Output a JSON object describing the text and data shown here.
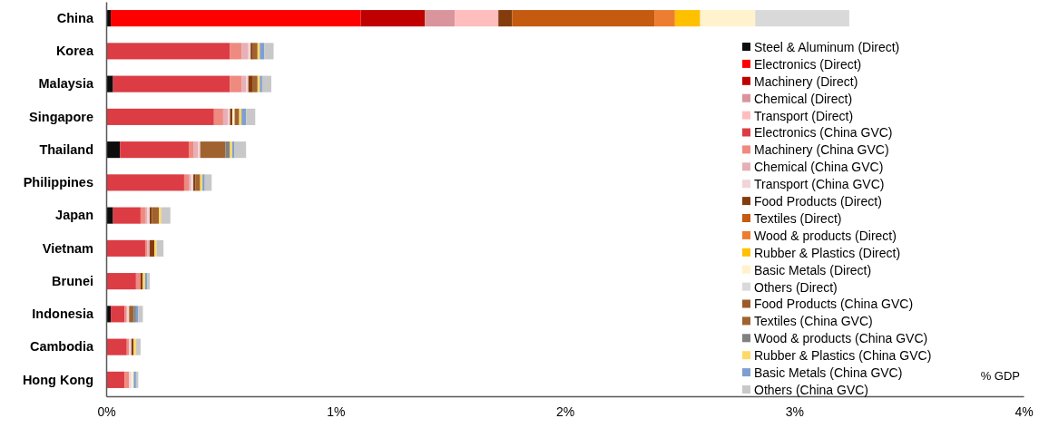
{
  "chart_data": {
    "type": "bar",
    "orientation": "horizontal",
    "stacked": true,
    "legend": "right",
    "grid": false,
    "categories": [
      "China",
      "Korea",
      "Malaysia",
      "Singapore",
      "Thailand",
      "Philippines",
      "Japan",
      "Vietnam",
      "Brunei",
      "Indonesia",
      "Cambodia",
      "Hong Kong"
    ],
    "xlim": [
      0,
      4
    ],
    "xticks": [
      {
        "value": 0,
        "label": "0%"
      },
      {
        "value": 1,
        "label": "1%"
      },
      {
        "value": 2,
        "label": "2%"
      },
      {
        "value": 3,
        "label": "3%"
      },
      {
        "value": 4,
        "label": "4%"
      }
    ],
    "annotations": [
      "% GDP"
    ],
    "series": [
      {
        "name": "Steel & Aluminum (Direct)",
        "color": "#0d0d0d",
        "values": [
          0.02,
          0,
          0.03,
          0,
          0.06,
          0,
          0.03,
          0,
          0,
          0.02,
          0,
          0
        ]
      },
      {
        "name": "Electronics (Direct)",
        "color": "#ff0000",
        "values": [
          1.09,
          0,
          0,
          0,
          0,
          0,
          0,
          0,
          0,
          0,
          0,
          0
        ]
      },
      {
        "name": "Machinery (Direct)",
        "color": "#c00000",
        "values": [
          0.28,
          0,
          0,
          0,
          0,
          0,
          0,
          0,
          0,
          0,
          0,
          0
        ]
      },
      {
        "name": "Chemical (Direct)",
        "color": "#d9959b",
        "values": [
          0.13,
          0,
          0,
          0,
          0,
          0,
          0,
          0,
          0,
          0,
          0,
          0
        ]
      },
      {
        "name": "Transport (Direct)",
        "color": "#ffbdbd",
        "values": [
          0.19,
          0,
          0,
          0,
          0,
          0,
          0,
          0,
          0,
          0,
          0,
          0
        ]
      },
      {
        "name": "Electronics (China GVC)",
        "color": "#dc3c44",
        "values": [
          0,
          0.54,
          0.51,
          0.47,
          0.3,
          0.34,
          0.12,
          0.17,
          0.13,
          0.06,
          0.09,
          0.08
        ]
      },
      {
        "name": "Machinery (China GVC)",
        "color": "#ef8a80",
        "values": [
          0,
          0.05,
          0.05,
          0.04,
          0.02,
          0.02,
          0.02,
          0.01,
          0.02,
          0.01,
          0.01,
          0.02
        ]
      },
      {
        "name": "Chemical (China GVC)",
        "color": "#e6b0b6",
        "values": [
          0,
          0.03,
          0.02,
          0.02,
          0.02,
          0.01,
          0.01,
          0.01,
          0,
          0,
          0,
          0
        ]
      },
      {
        "name": "Transport (China GVC)",
        "color": "#f2d4d8",
        "values": [
          0,
          0.01,
          0.01,
          0.01,
          0.01,
          0.01,
          0.01,
          0,
          0,
          0.01,
          0.01,
          0.01
        ]
      },
      {
        "name": "Food Products (Direct)",
        "color": "#843c0c",
        "values": [
          0.06,
          0.01,
          0.02,
          0.01,
          0,
          0.01,
          0.01,
          0.02,
          0.01,
          0,
          0.01,
          0
        ]
      },
      {
        "name": "Textiles (Direct)",
        "color": "#c55a11",
        "values": [
          0.62,
          0,
          0,
          0,
          0,
          0,
          0,
          0,
          0,
          0,
          0,
          0
        ]
      },
      {
        "name": "Wood & products (Direct)",
        "color": "#ed7d31",
        "values": [
          0.09,
          0,
          0,
          0,
          0,
          0,
          0,
          0,
          0,
          0,
          0,
          0
        ]
      },
      {
        "name": "Rubber & Plastics (Direct)",
        "color": "#ffc000",
        "values": [
          0.11,
          0,
          0,
          0,
          0,
          0,
          0,
          0,
          0,
          0,
          0,
          0
        ]
      },
      {
        "name": "Basic Metals (Direct)",
        "color": "#fff2cc",
        "values": [
          0.24,
          0,
          0,
          0.01,
          0,
          0,
          0,
          0,
          0,
          0,
          0,
          0.01
        ]
      },
      {
        "name": "Others (Direct)",
        "color": "#d9d9d9",
        "values": [
          0.41,
          0,
          0,
          0,
          0,
          0,
          0,
          0,
          0,
          0,
          0,
          0
        ]
      },
      {
        "name": "Food Products (China GVC)",
        "color": "#9c5a2a",
        "values": [
          0,
          0,
          0,
          0,
          0,
          0,
          0,
          0,
          0,
          0,
          0,
          0
        ]
      },
      {
        "name": "Textiles (China GVC)",
        "color": "#a0622e",
        "values": [
          0,
          0.02,
          0.02,
          0.02,
          0.11,
          0.02,
          0.03,
          0,
          0,
          0.02,
          0,
          0
        ]
      },
      {
        "name": "Wood & products (China GVC)",
        "color": "#808080",
        "values": [
          0,
          0,
          0,
          0,
          0.02,
          0,
          0,
          0,
          0,
          0.01,
          0,
          0
        ]
      },
      {
        "name": "Rubber & Plastics (China GVC)",
        "color": "#ffd966",
        "values": [
          0,
          0.01,
          0.01,
          0.01,
          0.01,
          0.01,
          0.01,
          0.01,
          0.01,
          0,
          0.01,
          0
        ]
      },
      {
        "name": "Basic Metals (China GVC)",
        "color": "#7f9fd0",
        "values": [
          0,
          0.02,
          0.01,
          0.02,
          0.01,
          0.01,
          0,
          0,
          0.01,
          0.01,
          0,
          0.01
        ]
      },
      {
        "name": "Others (China GVC)",
        "color": "#c8c8c8",
        "values": [
          0,
          0.04,
          0.04,
          0.04,
          0.05,
          0.03,
          0.04,
          0.03,
          0.01,
          0.02,
          0.02,
          0.01
        ]
      }
    ]
  }
}
